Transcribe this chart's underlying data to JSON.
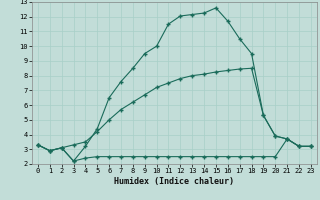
{
  "bg_color": "#c2ddd8",
  "grid_color": "#a8cfc8",
  "line_color": "#1a6b5a",
  "xlabel": "Humidex (Indice chaleur)",
  "xlim": [
    -0.5,
    23.5
  ],
  "ylim": [
    2,
    13
  ],
  "xticks": [
    0,
    1,
    2,
    3,
    4,
    5,
    6,
    7,
    8,
    9,
    10,
    11,
    12,
    13,
    14,
    15,
    16,
    17,
    18,
    19,
    20,
    21,
    22,
    23
  ],
  "yticks": [
    2,
    3,
    4,
    5,
    6,
    7,
    8,
    9,
    10,
    11,
    12,
    13
  ],
  "line1_x": [
    0,
    1,
    2,
    3,
    4,
    5,
    6,
    7,
    8,
    9,
    10,
    11,
    12,
    13,
    14,
    15,
    16,
    17,
    18,
    19,
    20,
    21,
    22,
    23
  ],
  "line1_y": [
    3.3,
    2.9,
    3.1,
    2.2,
    3.2,
    4.4,
    6.5,
    7.6,
    8.5,
    9.5,
    10.0,
    11.5,
    12.05,
    12.15,
    12.25,
    12.6,
    11.7,
    10.5,
    9.5,
    5.3,
    3.9,
    3.7,
    3.2,
    3.2
  ],
  "line2_x": [
    0,
    1,
    2,
    3,
    4,
    5,
    6,
    7,
    8,
    9,
    10,
    11,
    12,
    13,
    14,
    15,
    16,
    17,
    18,
    19,
    20,
    21,
    22,
    23
  ],
  "line2_y": [
    3.3,
    2.9,
    3.1,
    3.3,
    3.5,
    4.2,
    5.0,
    5.7,
    6.2,
    6.7,
    7.2,
    7.5,
    7.8,
    8.0,
    8.1,
    8.25,
    8.35,
    8.45,
    8.5,
    5.3,
    3.9,
    3.7,
    3.2,
    3.2
  ],
  "line3_x": [
    0,
    1,
    2,
    3,
    4,
    5,
    6,
    7,
    8,
    9,
    10,
    11,
    12,
    13,
    14,
    15,
    16,
    17,
    18,
    19,
    20,
    21,
    22,
    23
  ],
  "line3_y": [
    3.3,
    2.9,
    3.1,
    2.2,
    2.4,
    2.5,
    2.5,
    2.5,
    2.5,
    2.5,
    2.5,
    2.5,
    2.5,
    2.5,
    2.5,
    2.5,
    2.5,
    2.5,
    2.5,
    2.5,
    2.5,
    3.7,
    3.2,
    3.2
  ],
  "marker": "+",
  "markersize": 3.0,
  "linewidth": 0.8,
  "tick_fontsize": 5,
  "xlabel_fontsize": 6
}
